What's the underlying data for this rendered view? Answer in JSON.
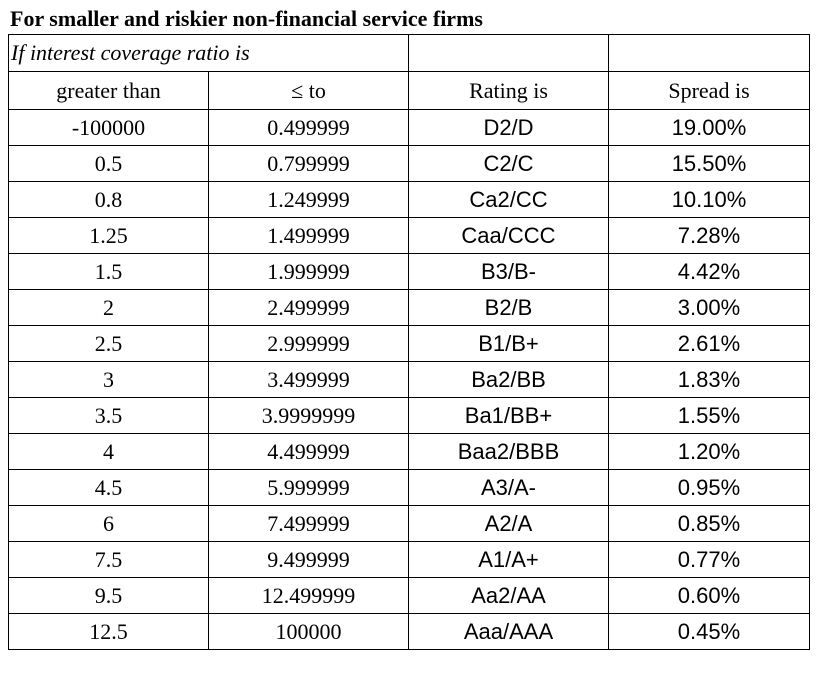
{
  "title": "For smaller and riskier non-financial service firms",
  "subheader": "If interest coverage ratio is",
  "columns": [
    "greater than",
    "≤ to",
    "Rating is",
    "Spread is"
  ],
  "rows": [
    [
      "-100000",
      "0.499999",
      "D2/D",
      "19.00%"
    ],
    [
      "0.5",
      "0.799999",
      "C2/C",
      "15.50%"
    ],
    [
      "0.8",
      "1.249999",
      "Ca2/CC",
      "10.10%"
    ],
    [
      "1.25",
      "1.499999",
      "Caa/CCC",
      "7.28%"
    ],
    [
      "1.5",
      "1.999999",
      "B3/B-",
      "4.42%"
    ],
    [
      "2",
      "2.499999",
      "B2/B",
      "3.00%"
    ],
    [
      "2.5",
      "2.999999",
      "B1/B+",
      "2.61%"
    ],
    [
      "3",
      "3.499999",
      "Ba2/BB",
      "1.83%"
    ],
    [
      "3.5",
      "3.9999999",
      "Ba1/BB+",
      "1.55%"
    ],
    [
      "4",
      "4.499999",
      "Baa2/BBB",
      "1.20%"
    ],
    [
      "4.5",
      "5.999999",
      "A3/A-",
      "0.95%"
    ],
    [
      "6",
      "7.499999",
      "A2/A",
      "0.85%"
    ],
    [
      "7.5",
      "9.499999",
      "A1/A+",
      "0.77%"
    ],
    [
      "9.5",
      "12.499999",
      "Aa2/AA",
      "0.60%"
    ],
    [
      "12.5",
      "100000",
      "Aaa/AAA",
      "0.45%"
    ]
  ]
}
